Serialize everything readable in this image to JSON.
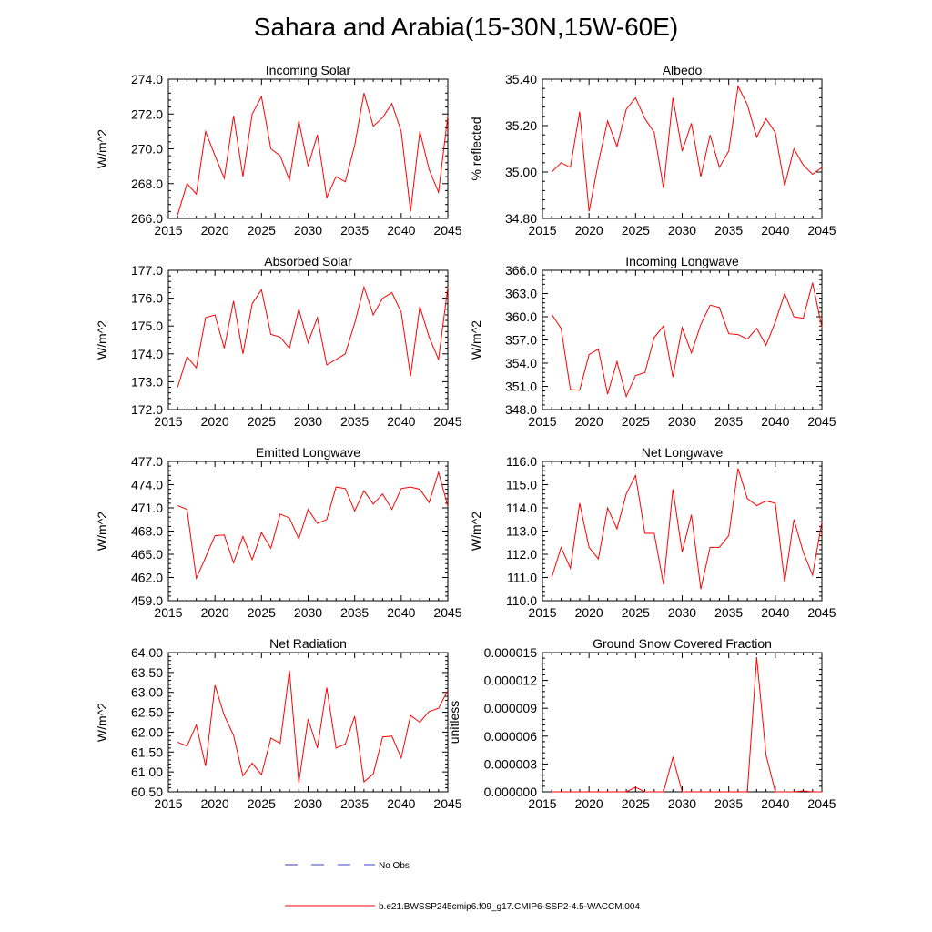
{
  "title": "Sahara and Arabia(15-30N,15W-60E)",
  "legend": {
    "obs_label": "No Obs",
    "model_label": "b.e21.BWSSP245cmip6.f09_g17.CMIP6-SSP2-4.5-WACCM.004",
    "obs_color": "#3344cc",
    "model_color": "#ff0000"
  },
  "chart_data": [
    {
      "type": "line",
      "title": "Incoming Solar",
      "ylabel": "W/m^2",
      "xlim": [
        2015,
        2045
      ],
      "ylim": [
        266.0,
        274.0
      ],
      "yticks": [
        "266.0",
        "268.0",
        "270.0",
        "272.0",
        "274.0"
      ],
      "xticks": [
        "2015",
        "2020",
        "2025",
        "2030",
        "2035",
        "2040",
        "2045"
      ],
      "x": [
        2016,
        2017,
        2018,
        2019,
        2020,
        2021,
        2022,
        2023,
        2024,
        2025,
        2026,
        2027,
        2028,
        2029,
        2030,
        2031,
        2032,
        2033,
        2034,
        2035,
        2036,
        2037,
        2038,
        2039,
        2040,
        2041,
        2042,
        2043,
        2044,
        2045
      ],
      "values": [
        266.2,
        268.0,
        267.4,
        271.0,
        269.6,
        268.3,
        271.9,
        268.4,
        272.0,
        273.0,
        270.0,
        269.6,
        268.2,
        271.6,
        269.0,
        270.8,
        267.2,
        268.4,
        268.1,
        270.2,
        273.2,
        271.3,
        271.8,
        272.6,
        271.0,
        266.4,
        271.0,
        268.8,
        267.5,
        271.9
      ]
    },
    {
      "type": "line",
      "title": "Albedo",
      "ylabel": "% reflected",
      "xlim": [
        2015,
        2045
      ],
      "ylim": [
        34.8,
        35.4
      ],
      "yticks": [
        "34.80",
        "35.00",
        "35.20",
        "35.40"
      ],
      "xticks": [
        "2015",
        "2020",
        "2025",
        "2030",
        "2035",
        "2040",
        "2045"
      ],
      "x": [
        2016,
        2017,
        2018,
        2019,
        2020,
        2021,
        2022,
        2023,
        2024,
        2025,
        2026,
        2027,
        2028,
        2029,
        2030,
        2031,
        2032,
        2033,
        2034,
        2035,
        2036,
        2037,
        2038,
        2039,
        2040,
        2041,
        2042,
        2043,
        2044,
        2045
      ],
      "values": [
        35.0,
        35.04,
        35.02,
        35.26,
        34.83,
        35.04,
        35.22,
        35.11,
        35.27,
        35.32,
        35.23,
        35.17,
        34.93,
        35.32,
        35.09,
        35.21,
        34.98,
        35.16,
        35.02,
        35.09,
        35.37,
        35.29,
        35.15,
        35.23,
        35.17,
        34.94,
        35.1,
        35.03,
        34.99,
        35.02
      ]
    },
    {
      "type": "line",
      "title": "Absorbed Solar",
      "ylabel": "W/m^2",
      "xlim": [
        2015,
        2045
      ],
      "ylim": [
        172.0,
        177.0
      ],
      "yticks": [
        "172.0",
        "173.0",
        "174.0",
        "175.0",
        "176.0",
        "177.0"
      ],
      "xticks": [
        "2015",
        "2020",
        "2025",
        "2030",
        "2035",
        "2040",
        "2045"
      ],
      "x": [
        2016,
        2017,
        2018,
        2019,
        2020,
        2021,
        2022,
        2023,
        2024,
        2025,
        2026,
        2027,
        2028,
        2029,
        2030,
        2031,
        2032,
        2033,
        2034,
        2035,
        2036,
        2037,
        2038,
        2039,
        2040,
        2041,
        2042,
        2043,
        2044,
        2045
      ],
      "values": [
        172.8,
        173.9,
        173.5,
        175.3,
        175.4,
        174.2,
        175.9,
        174.0,
        175.8,
        176.3,
        174.7,
        174.6,
        174.2,
        175.6,
        174.4,
        175.3,
        173.6,
        173.8,
        174.0,
        175.1,
        176.4,
        175.4,
        176.0,
        176.2,
        175.5,
        173.2,
        175.7,
        174.6,
        173.8,
        176.4
      ]
    },
    {
      "type": "line",
      "title": "Incoming Longwave",
      "ylabel": "W/m^2",
      "xlim": [
        2015,
        2045
      ],
      "ylim": [
        348.0,
        366.0
      ],
      "yticks": [
        "348.0",
        "351.0",
        "354.0",
        "357.0",
        "360.0",
        "363.0",
        "366.0"
      ],
      "xticks": [
        "2015",
        "2020",
        "2025",
        "2030",
        "2035",
        "2040",
        "2045"
      ],
      "x": [
        2016,
        2017,
        2018,
        2019,
        2020,
        2021,
        2022,
        2023,
        2024,
        2025,
        2026,
        2027,
        2028,
        2029,
        2030,
        2031,
        2032,
        2033,
        2034,
        2035,
        2036,
        2037,
        2038,
        2039,
        2040,
        2041,
        2042,
        2043,
        2044,
        2045
      ],
      "values": [
        360.3,
        358.5,
        350.6,
        350.5,
        355.1,
        355.8,
        350.0,
        354.2,
        349.7,
        352.4,
        352.8,
        357.3,
        358.8,
        352.2,
        358.6,
        355.3,
        359.0,
        361.5,
        361.2,
        357.8,
        357.7,
        357.1,
        358.5,
        356.3,
        359.3,
        363.0,
        360.0,
        359.8,
        364.4,
        358.6
      ]
    },
    {
      "type": "line",
      "title": "Emitted Longwave",
      "ylabel": "W/m^2",
      "xlim": [
        2015,
        2045
      ],
      "ylim": [
        459.0,
        477.0
      ],
      "yticks": [
        "459.0",
        "462.0",
        "465.0",
        "468.0",
        "471.0",
        "474.0",
        "477.0"
      ],
      "xticks": [
        "2015",
        "2020",
        "2025",
        "2030",
        "2035",
        "2040",
        "2045"
      ],
      "x": [
        2016,
        2017,
        2018,
        2019,
        2020,
        2021,
        2022,
        2023,
        2024,
        2025,
        2026,
        2027,
        2028,
        2029,
        2030,
        2031,
        2032,
        2033,
        2034,
        2035,
        2036,
        2037,
        2038,
        2039,
        2040,
        2041,
        2042,
        2043,
        2044,
        2045
      ],
      "values": [
        471.3,
        470.8,
        461.9,
        464.6,
        467.4,
        467.5,
        463.9,
        467.3,
        464.3,
        467.8,
        465.8,
        470.2,
        469.7,
        467.0,
        470.8,
        469.0,
        469.5,
        473.7,
        473.5,
        470.6,
        473.2,
        471.5,
        472.8,
        470.8,
        473.5,
        473.7,
        473.4,
        471.7,
        475.6,
        471.2
      ]
    },
    {
      "type": "line",
      "title": "Net Longwave",
      "ylabel": "W/m^2",
      "xlim": [
        2015,
        2045
      ],
      "ylim": [
        110.0,
        116.0
      ],
      "yticks": [
        "110.0",
        "111.0",
        "112.0",
        "113.0",
        "114.0",
        "115.0",
        "116.0"
      ],
      "xticks": [
        "2015",
        "2020",
        "2025",
        "2030",
        "2035",
        "2040",
        "2045"
      ],
      "x": [
        2016,
        2017,
        2018,
        2019,
        2020,
        2021,
        2022,
        2023,
        2024,
        2025,
        2026,
        2027,
        2028,
        2029,
        2030,
        2031,
        2032,
        2033,
        2034,
        2035,
        2036,
        2037,
        2038,
        2039,
        2040,
        2041,
        2042,
        2043,
        2044,
        2045
      ],
      "values": [
        111.0,
        112.3,
        111.4,
        114.2,
        112.3,
        111.8,
        114.0,
        113.1,
        114.6,
        115.4,
        112.9,
        112.9,
        110.7,
        114.8,
        112.1,
        113.7,
        110.5,
        112.3,
        112.3,
        112.8,
        115.7,
        114.4,
        114.1,
        114.3,
        114.2,
        110.8,
        113.5,
        112.1,
        111.1,
        113.4
      ]
    },
    {
      "type": "line",
      "title": "Net Radiation",
      "ylabel": "W/m^2",
      "xlim": [
        2015,
        2045
      ],
      "ylim": [
        60.5,
        64.0
      ],
      "yticks": [
        "60.50",
        "61.00",
        "61.50",
        "62.00",
        "62.50",
        "63.00",
        "63.50",
        "64.00"
      ],
      "xticks": [
        "2015",
        "2020",
        "2025",
        "2030",
        "2035",
        "2040",
        "2045"
      ],
      "x": [
        2016,
        2017,
        2018,
        2019,
        2020,
        2021,
        2022,
        2023,
        2024,
        2025,
        2026,
        2027,
        2028,
        2029,
        2030,
        2031,
        2032,
        2033,
        2034,
        2035,
        2036,
        2037,
        2038,
        2039,
        2040,
        2041,
        2042,
        2043,
        2044,
        2045
      ],
      "values": [
        61.75,
        61.65,
        62.18,
        61.15,
        63.18,
        62.42,
        61.92,
        60.9,
        61.22,
        60.93,
        61.85,
        61.72,
        63.55,
        60.73,
        62.33,
        61.6,
        63.12,
        61.6,
        61.7,
        62.4,
        60.75,
        60.95,
        61.88,
        61.9,
        61.35,
        62.42,
        62.25,
        62.52,
        62.6,
        63.05
      ]
    },
    {
      "type": "line",
      "title": "Ground Snow Covered Fraction",
      "ylabel": "unitless",
      "xlim": [
        2015,
        2045
      ],
      "ylim": [
        0,
        1.5e-05
      ],
      "yticks": [
        "0.000000",
        "0.000003",
        "0.000006",
        "0.000009",
        "0.000012",
        "0.000015"
      ],
      "xticks": [
        "2015",
        "2020",
        "2025",
        "2030",
        "2035",
        "2040",
        "2045"
      ],
      "x": [
        2016,
        2017,
        2018,
        2019,
        2020,
        2021,
        2022,
        2023,
        2024,
        2025,
        2026,
        2027,
        2028,
        2029,
        2030,
        2031,
        2032,
        2033,
        2034,
        2035,
        2036,
        2037,
        2038,
        2039,
        2040,
        2041,
        2042,
        2043,
        2044,
        2045
      ],
      "values": [
        0,
        0,
        0,
        0,
        0,
        0,
        0,
        0,
        0,
        5e-07,
        0,
        0,
        0,
        3.7e-06,
        0,
        0,
        0,
        0,
        0,
        0,
        0,
        0,
        1.45e-05,
        4e-06,
        0,
        0,
        0,
        1e-07,
        0,
        0
      ]
    }
  ]
}
